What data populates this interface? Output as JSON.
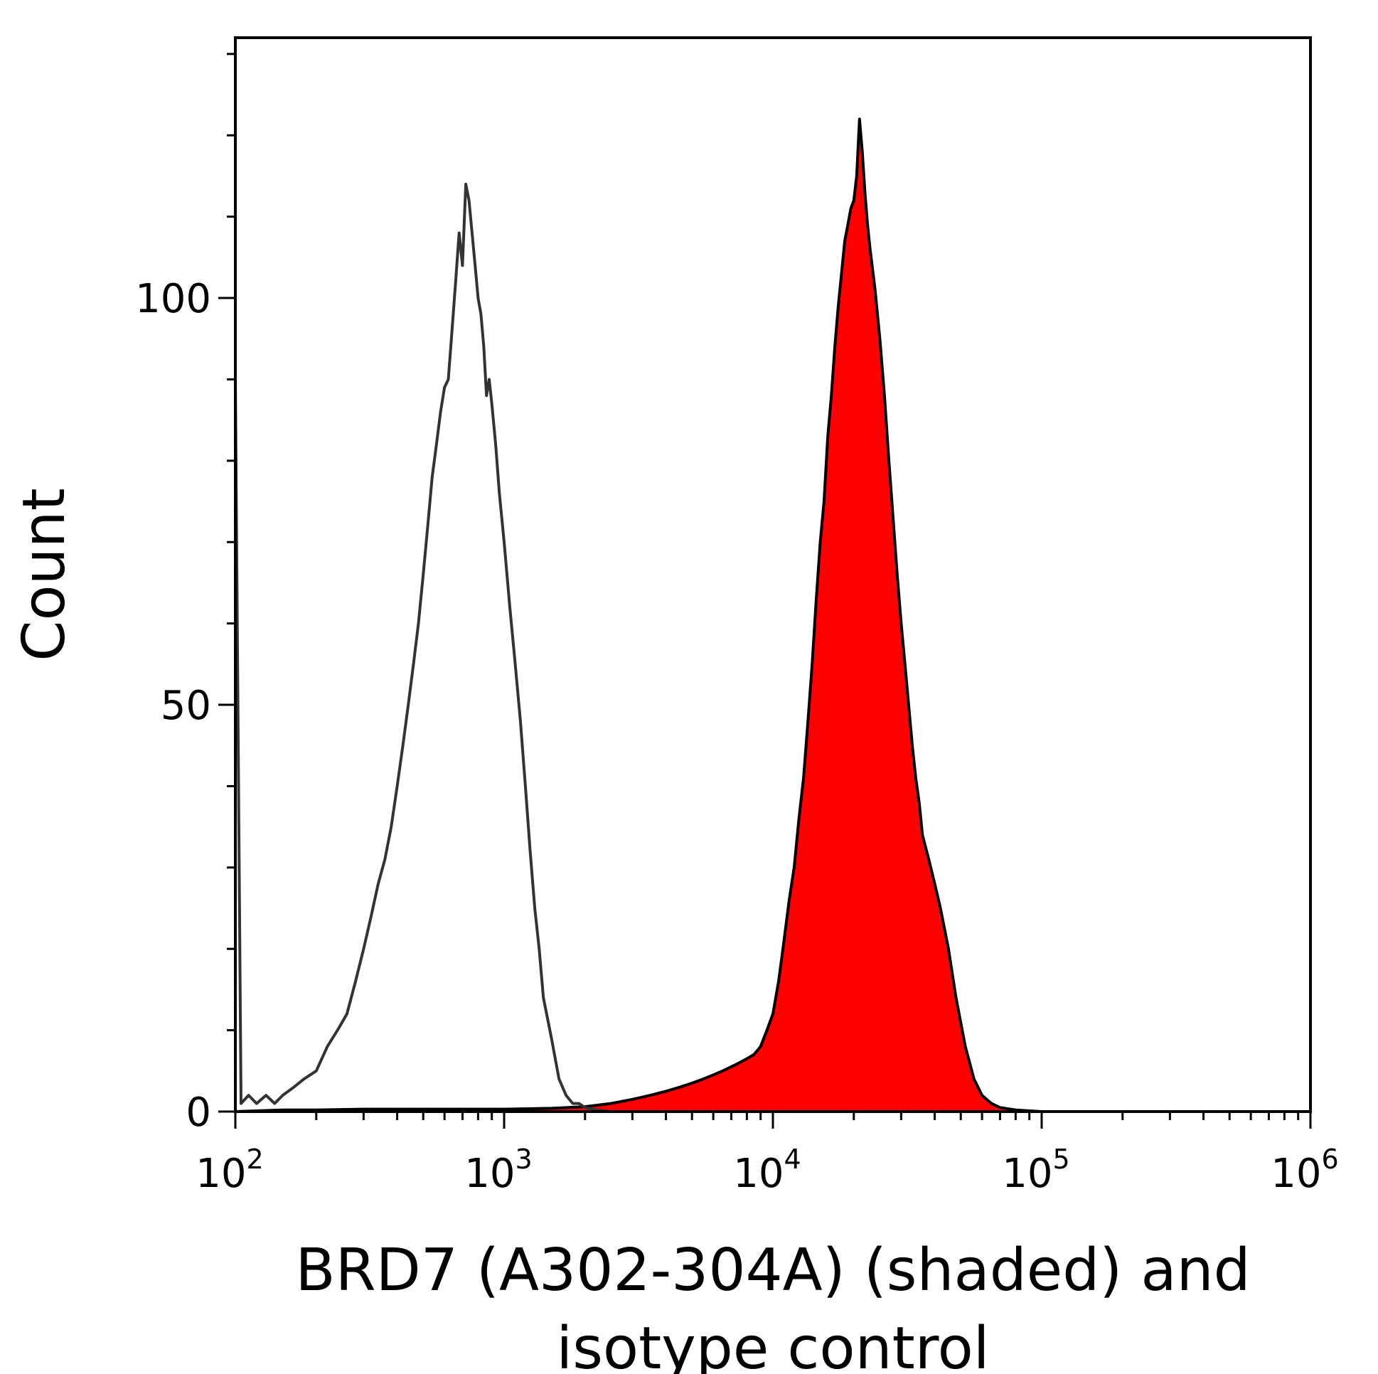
{
  "chart_data": {
    "type": "area",
    "title": "",
    "xlabel_lines": [
      "BRD7 (A302-304A) (shaded) and",
      "isotype control"
    ],
    "ylabel": "Count",
    "x_scale": "log",
    "xlim": [
      100,
      1000000
    ],
    "ylim": [
      0,
      132
    ],
    "x_ticks": [
      {
        "value": 100,
        "base": "10",
        "exp": "2"
      },
      {
        "value": 1000,
        "base": "10",
        "exp": "3"
      },
      {
        "value": 10000,
        "base": "10",
        "exp": "4"
      },
      {
        "value": 100000,
        "base": "10",
        "exp": "5"
      },
      {
        "value": 1000000,
        "base": "10",
        "exp": "6"
      }
    ],
    "y_ticks": [
      {
        "value": 0,
        "label": "0"
      },
      {
        "value": 50,
        "label": "50"
      },
      {
        "value": 100,
        "label": "100"
      }
    ],
    "y_minor_step": 10,
    "grid": false,
    "legend": "none",
    "series": [
      {
        "style": "outline",
        "color": "#333333",
        "x": [
          100,
          105,
          112,
          120,
          130,
          140,
          150,
          165,
          180,
          200,
          220,
          240,
          260,
          280,
          300,
          320,
          340,
          360,
          380,
          400,
          420,
          440,
          460,
          480,
          500,
          520,
          540,
          560,
          580,
          600,
          620,
          640,
          660,
          680,
          700,
          720,
          740,
          760,
          780,
          800,
          820,
          840,
          860,
          880,
          900,
          930,
          960,
          1000,
          1050,
          1100,
          1150,
          1200,
          1250,
          1300,
          1350,
          1400,
          1500,
          1600,
          1700,
          1800,
          1900,
          2000,
          2200,
          2500,
          3000,
          4000,
          6000,
          10000,
          20000,
          100000,
          1000000
        ],
        "y": [
          90,
          1,
          2,
          1,
          2,
          1,
          2,
          3,
          4,
          5,
          8,
          10,
          12,
          16,
          20,
          24,
          28,
          31,
          35,
          40,
          45,
          50,
          55,
          60,
          66,
          72,
          78,
          82,
          86,
          89,
          90,
          96,
          102,
          108,
          104,
          114,
          112,
          108,
          104,
          100,
          98,
          94,
          88,
          90,
          87,
          82,
          76,
          70,
          62,
          55,
          48,
          40,
          32,
          25,
          20,
          14,
          9,
          4,
          2,
          1,
          1,
          0.5,
          0.2,
          0,
          0,
          0,
          0,
          0,
          0,
          0,
          0
        ]
      },
      {
        "style": "filled",
        "color": "#ff0000",
        "x": [
          100,
          150,
          200,
          300,
          500,
          800,
          1000,
          1500,
          2000,
          2500,
          3000,
          3500,
          4000,
          4500,
          5000,
          5500,
          6000,
          6500,
          7000,
          7500,
          8000,
          8500,
          9000,
          9500,
          10000,
          10500,
          11000,
          11500,
          12000,
          12500,
          13000,
          13500,
          14000,
          14500,
          15000,
          15500,
          16000,
          16500,
          17000,
          17500,
          18000,
          18500,
          19000,
          19500,
          20000,
          20500,
          21000,
          21500,
          22000,
          22500,
          23000,
          24000,
          25000,
          26000,
          27000,
          28000,
          29000,
          30000,
          31000,
          32000,
          33000,
          34000,
          35000,
          36000,
          38000,
          40000,
          42000,
          45000,
          48000,
          52000,
          56000,
          60000,
          65000,
          70000,
          80000,
          100000,
          1000000
        ],
        "y": [
          0,
          0.2,
          0.2,
          0.3,
          0.3,
          0.3,
          0.3,
          0.4,
          0.6,
          1,
          1.5,
          2,
          2.5,
          3,
          3.5,
          4,
          4.5,
          5,
          5.5,
          6,
          6.5,
          7,
          8,
          10,
          12,
          16,
          21,
          26,
          30,
          36,
          41,
          48,
          55,
          63,
          70,
          75,
          83,
          88,
          94,
          99,
          103,
          107,
          109,
          111,
          112,
          115,
          122,
          118,
          113,
          109,
          106,
          101,
          95,
          88,
          80,
          73,
          66,
          60,
          55,
          50,
          45,
          41,
          38,
          34,
          31,
          28,
          25,
          20,
          14,
          8,
          4,
          2,
          1,
          0.5,
          0.2,
          0,
          0
        ]
      }
    ]
  }
}
